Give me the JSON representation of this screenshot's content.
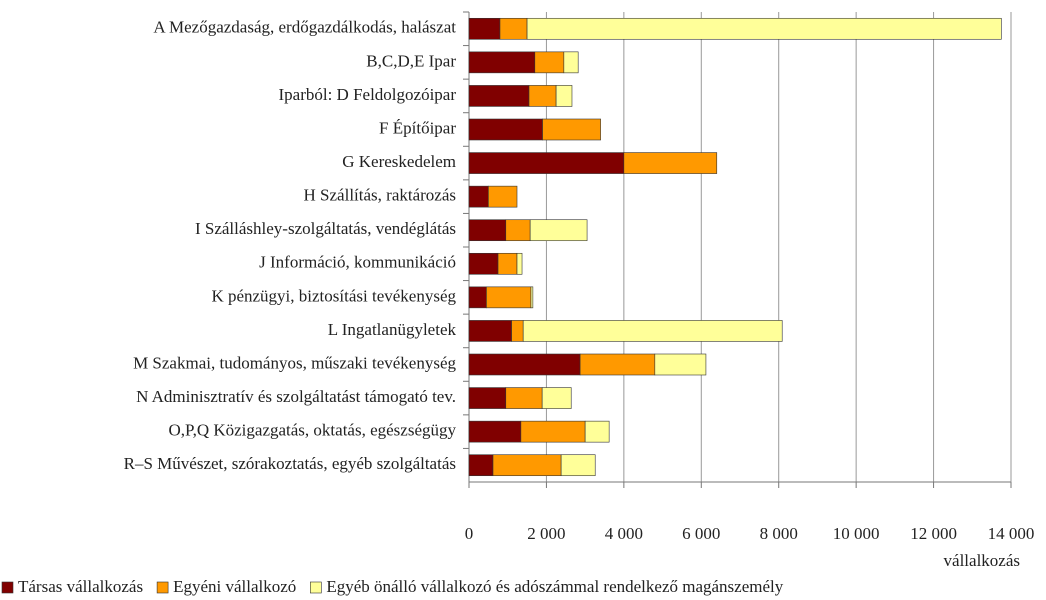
{
  "chart_data": {
    "type": "stacked_barh",
    "categories": [
      "A Mezőgazdaság, erdőgazdálkodás, halászat",
      "B,C,D,E Ipar",
      "Iparból: D Feldolgozóipar",
      "F Építőipar",
      "G Kereskedelem",
      "H Szállítás, raktározás",
      "I Szálláshley-szolgáltatás, vendéglátás",
      "J Információ, kommunikáció",
      "K pénzügyi, biztosítási tevékenység",
      "L Ingatlanügyletek",
      "M Szakmai, tudományos, műszaki tevékenység",
      "N Adminisztratív és szolgáltatást támogató tev.",
      "O,P,Q Közigazgatás, oktatás, egészségügy",
      "R–S Művészet, szórakoztatás, egyéb szolgáltatás"
    ],
    "series": [
      {
        "name": "Társas vállalkozás",
        "color": "#800000",
        "values": [
          800,
          1700,
          1550,
          1900,
          4000,
          500,
          950,
          750,
          450,
          1100,
          2870,
          950,
          1340,
          620
        ]
      },
      {
        "name": "Egyéni vállalkozó",
        "color": "#ff9900",
        "values": [
          700,
          750,
          700,
          1500,
          2400,
          740,
          630,
          490,
          1150,
          300,
          1930,
          940,
          1660,
          1760
        ]
      },
      {
        "name": "Egyéb önálló vállalkozó és adószámmal rendelkező magánszemély",
        "color": "#ffff99",
        "values": [
          12250,
          370,
          410,
          0,
          0,
          0,
          1470,
          130,
          50,
          6690,
          1320,
          750,
          620,
          880
        ]
      }
    ],
    "xlabel": "vállalkozás",
    "xlim": [
      0,
      14000
    ],
    "xticks": [
      0,
      {
        "value": 2000,
        "label": "2 000"
      },
      {
        "value": 4000,
        "label": "4 000"
      },
      {
        "value": 6000,
        "label": "6 000"
      },
      {
        "value": 8000,
        "label": "8 000"
      },
      {
        "value": 10000,
        "label": "10 000"
      },
      {
        "value": 12000,
        "label": "12 000"
      },
      {
        "value": 14000,
        "label": "14 000"
      }
    ],
    "grid": true,
    "legend": "bottom"
  }
}
